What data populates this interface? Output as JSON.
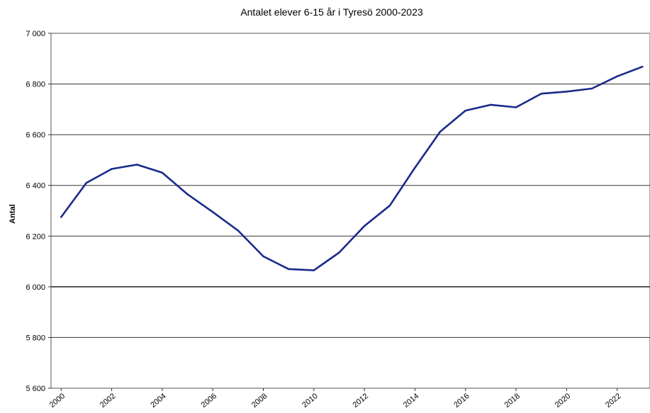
{
  "chart_data": {
    "type": "line",
    "title": "Antalet elever 6-15 år i Tyresö 2000-2023",
    "xlabel": "",
    "ylabel": "Antal",
    "xlim": [
      1999.6,
      2023.3
    ],
    "ylim": [
      5600,
      7000
    ],
    "y_ticks": [
      5600,
      5800,
      6000,
      6200,
      6400,
      6600,
      6800,
      7000
    ],
    "y_tick_labels": [
      "5 600",
      "5 800",
      "6 000",
      "6 200",
      "6 400",
      "6 600",
      "6 800",
      "7 000"
    ],
    "x_ticks": [
      2000,
      2002,
      2004,
      2006,
      2008,
      2010,
      2012,
      2014,
      2016,
      2018,
      2020,
      2022
    ],
    "x_tick_labels": [
      "2000",
      "2002",
      "2004",
      "2006",
      "2008",
      "2010",
      "2012",
      "2014",
      "2016",
      "2018",
      "2020",
      "2022"
    ],
    "grid": true,
    "legend": "none",
    "series": [
      {
        "color": "#1a2a8a",
        "x": [
          2000,
          2001,
          2002,
          2003,
          2004,
          2005,
          2006,
          2007,
          2008,
          2009,
          2010,
          2011,
          2012,
          2013,
          2014,
          2015,
          2016,
          2017,
          2018,
          2019,
          2020,
          2021,
          2022,
          2023
        ],
        "values": [
          6275,
          6410,
          6465,
          6482,
          6450,
          6365,
          6295,
          6222,
          6120,
          6070,
          6065,
          6135,
          6240,
          6320,
          6470,
          6612,
          6695,
          6718,
          6708,
          6762,
          6770,
          6782,
          6830,
          6868
        ]
      }
    ]
  }
}
